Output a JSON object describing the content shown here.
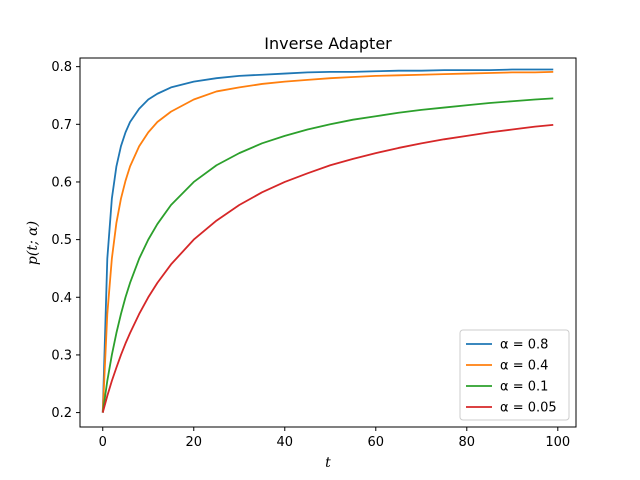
{
  "chart_data": {
    "type": "line",
    "title": "Inverse Adapter",
    "xlabel": "t",
    "ylabel": "p(t; α)",
    "xlim": [
      -5,
      104
    ],
    "ylim": [
      0.175,
      0.815
    ],
    "xticks": [
      0,
      20,
      40,
      60,
      80,
      100
    ],
    "yticks": [
      0.2,
      0.3,
      0.4,
      0.5,
      0.6,
      0.7,
      0.8
    ],
    "x": [
      0,
      1,
      2,
      3,
      4,
      5,
      6,
      8,
      10,
      12,
      15,
      20,
      25,
      30,
      35,
      40,
      45,
      50,
      55,
      60,
      65,
      70,
      75,
      80,
      85,
      90,
      95,
      99
    ],
    "series": [
      {
        "name": "α = 0.8",
        "color": "#1f77b4",
        "values": [
          0.2,
          0.467,
          0.571,
          0.627,
          0.662,
          0.686,
          0.704,
          0.727,
          0.743,
          0.753,
          0.764,
          0.774,
          0.78,
          0.784,
          0.786,
          0.788,
          0.79,
          0.791,
          0.791,
          0.792,
          0.793,
          0.793,
          0.794,
          0.794,
          0.794,
          0.795,
          0.795,
          0.795
        ]
      },
      {
        "name": "α = 0.4",
        "color": "#ff7f0e",
        "values": [
          0.2,
          0.371,
          0.467,
          0.529,
          0.571,
          0.602,
          0.627,
          0.662,
          0.686,
          0.704,
          0.722,
          0.743,
          0.757,
          0.764,
          0.77,
          0.774,
          0.777,
          0.78,
          0.782,
          0.784,
          0.785,
          0.786,
          0.787,
          0.788,
          0.789,
          0.79,
          0.79,
          0.791
        ]
      },
      {
        "name": "α = 0.1",
        "color": "#2ca02c",
        "values": [
          0.2,
          0.255,
          0.3,
          0.338,
          0.371,
          0.4,
          0.425,
          0.467,
          0.5,
          0.527,
          0.56,
          0.6,
          0.629,
          0.65,
          0.667,
          0.68,
          0.691,
          0.7,
          0.708,
          0.714,
          0.72,
          0.725,
          0.729,
          0.733,
          0.737,
          0.74,
          0.743,
          0.745
        ]
      },
      {
        "name": "α = 0.05",
        "color": "#d62728",
        "values": [
          0.2,
          0.229,
          0.255,
          0.278,
          0.3,
          0.32,
          0.338,
          0.371,
          0.4,
          0.425,
          0.457,
          0.5,
          0.533,
          0.56,
          0.582,
          0.6,
          0.615,
          0.629,
          0.64,
          0.65,
          0.659,
          0.667,
          0.674,
          0.68,
          0.686,
          0.691,
          0.696,
          0.699
        ]
      }
    ],
    "legend": "lower-right",
    "grid": false
  }
}
